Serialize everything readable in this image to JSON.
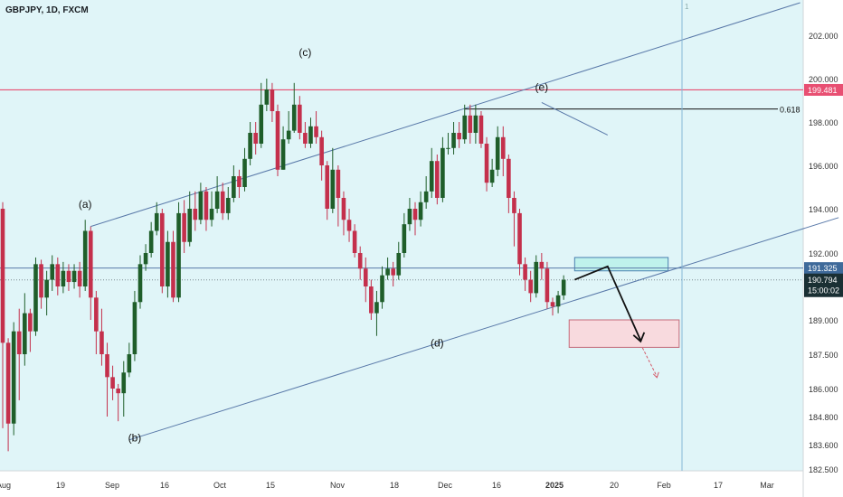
{
  "header": {
    "symbol": "GBPJPY, 1D, FXCM"
  },
  "colors": {
    "background": "#e0f5f8",
    "bull": "#1f5e2a",
    "bear": "#c4304c",
    "channel": "#5878a8",
    "resistance": "#e84f72",
    "price": "#1a2f33",
    "zone_buy": "#bff2ec",
    "zone_sell": "#f8dade"
  },
  "axes": {
    "y_ticks": [
      "202.000",
      "200.000",
      "198.000",
      "196.000",
      "194.000",
      "192.000",
      "189.000",
      "187.500",
      "186.000",
      "184.800",
      "183.600",
      "182.500"
    ],
    "x_ticks": [
      "Aug",
      "19",
      "Sep",
      "16",
      "Oct",
      "15",
      "Nov",
      "18",
      "Dec",
      "16",
      "2025",
      "20",
      "Feb",
      "17",
      "Mar"
    ]
  },
  "price_labels": {
    "resistance": "199.481",
    "current": "191.325",
    "last": "190.794",
    "countdown": "15:00:02"
  },
  "annotations": {
    "wave_a": "(a)",
    "wave_b": "(b)",
    "wave_c": "(c)",
    "wave_d": "(d)",
    "wave_e": "(e)",
    "fib": "0.618",
    "cursor_mark": "1"
  },
  "chart_data": {
    "type": "candlestick",
    "symbol": "GBPJPY",
    "timeframe": "1D",
    "ylim": [
      182.5,
      203.5
    ],
    "candles": [
      [
        194,
        188,
        194.3,
        184.3
      ],
      [
        188,
        184.5,
        188.2,
        183.3
      ],
      [
        184.5,
        188.5,
        188.9,
        184.0
      ],
      [
        188.5,
        187.5,
        189.5,
        185.5
      ],
      [
        187.5,
        189.3,
        190.2,
        187.0
      ],
      [
        189.3,
        188.5,
        189.5,
        187.6
      ],
      [
        188.5,
        191.5,
        191.8,
        188.3
      ],
      [
        191.5,
        190.0,
        191.7,
        189.5
      ],
      [
        190.0,
        190.8,
        191.2,
        189.2
      ],
      [
        190.8,
        191.5,
        191.9,
        190.3
      ],
      [
        191.5,
        190.5,
        191.8,
        190.1
      ],
      [
        190.5,
        191.2,
        191.6,
        190.2
      ],
      [
        191.2,
        190.7,
        191.5,
        190.3
      ],
      [
        190.7,
        191.2,
        191.5,
        190.4
      ],
      [
        191.2,
        190.5,
        191.6,
        190.0
      ],
      [
        190.5,
        193.0,
        193.5,
        190.3
      ],
      [
        193.0,
        190.0,
        193.2,
        189.0
      ],
      [
        190.0,
        188.5,
        190.3,
        187.5
      ],
      [
        188.5,
        187.5,
        189.5,
        187.0
      ],
      [
        187.5,
        186.5,
        188.0,
        184.8
      ],
      [
        186.5,
        186.0,
        187.0,
        185.5
      ],
      [
        186.0,
        185.8,
        186.2,
        184.6
      ],
      [
        185.8,
        186.7,
        187.2,
        184.8
      ],
      [
        186.7,
        187.5,
        188.0,
        186.5
      ],
      [
        187.5,
        189.8,
        190.3,
        187.2
      ],
      [
        189.8,
        191.5,
        191.9,
        189.5
      ],
      [
        191.5,
        192.0,
        192.4,
        191.2
      ],
      [
        192.0,
        193.0,
        193.4,
        191.8
      ],
      [
        193.0,
        193.8,
        194.3,
        192.8
      ],
      [
        193.8,
        190.5,
        194.0,
        190.2
      ],
      [
        190.5,
        192.5,
        193.0,
        190.0
      ],
      [
        192.5,
        190.0,
        193.0,
        189.8
      ],
      [
        190.0,
        193.8,
        194.3,
        189.8
      ],
      [
        193.8,
        192.5,
        194.4,
        192.0
      ],
      [
        192.5,
        194.0,
        194.8,
        192.3
      ],
      [
        194.0,
        193.5,
        194.8,
        193.0
      ],
      [
        193.5,
        194.8,
        195.2,
        193.3
      ],
      [
        194.8,
        193.5,
        195.0,
        193.0
      ],
      [
        193.5,
        194.0,
        194.8,
        193.2
      ],
      [
        194.0,
        194.8,
        195.5,
        193.8
      ],
      [
        194.8,
        193.8,
        195.2,
        193.5
      ],
      [
        193.8,
        194.5,
        195.0,
        193.5
      ],
      [
        194.5,
        195.5,
        196.0,
        194.3
      ],
      [
        195.5,
        195.0,
        195.8,
        194.5
      ],
      [
        195.0,
        196.3,
        196.8,
        194.8
      ],
      [
        196.3,
        197.5,
        198.0,
        196.0
      ],
      [
        197.5,
        197.0,
        198.0,
        196.5
      ],
      [
        197.0,
        198.8,
        199.8,
        196.8
      ],
      [
        198.8,
        199.5,
        200.0,
        198.5
      ],
      [
        199.5,
        198.5,
        199.8,
        198.0
      ],
      [
        198.5,
        195.8,
        198.8,
        195.5
      ],
      [
        195.8,
        197.2,
        197.8,
        195.8
      ],
      [
        197.2,
        197.6,
        198.5,
        197.0
      ],
      [
        197.6,
        198.8,
        199.8,
        197.5
      ],
      [
        198.8,
        197.5,
        199.2,
        197.2
      ],
      [
        197.5,
        197.0,
        198.0,
        196.8
      ],
      [
        197.0,
        197.8,
        198.2,
        196.8
      ],
      [
        197.8,
        197.3,
        198.5,
        197.0
      ],
      [
        197.3,
        196.0,
        197.6,
        195.3
      ],
      [
        196.0,
        194.0,
        196.2,
        193.5
      ],
      [
        194.0,
        195.8,
        196.8,
        193.8
      ],
      [
        195.8,
        194.5,
        196.0,
        193.2
      ],
      [
        194.5,
        193.5,
        194.8,
        192.8
      ],
      [
        193.5,
        193.0,
        194.0,
        192.5
      ],
      [
        193.0,
        192.0,
        193.3,
        191.8
      ],
      [
        192.0,
        191.3,
        192.3,
        190.8
      ],
      [
        191.3,
        190.5,
        191.8,
        189.8
      ],
      [
        190.5,
        189.3,
        190.8,
        189.0
      ],
      [
        189.3,
        189.8,
        190.3,
        188.3
      ],
      [
        189.8,
        191.0,
        191.4,
        189.5
      ],
      [
        191.0,
        191.3,
        191.8,
        190.8
      ],
      [
        191.3,
        191.0,
        191.6,
        190.5
      ],
      [
        191.0,
        192.0,
        192.5,
        190.8
      ],
      [
        192.0,
        193.3,
        193.8,
        191.8
      ],
      [
        193.3,
        194.0,
        194.5,
        193.0
      ],
      [
        194.0,
        193.5,
        194.3,
        192.8
      ],
      [
        193.5,
        194.3,
        194.8,
        193.2
      ],
      [
        194.3,
        194.8,
        195.5,
        194.0
      ],
      [
        194.8,
        196.2,
        196.8,
        194.5
      ],
      [
        196.2,
        194.5,
        196.5,
        194.2
      ],
      [
        194.5,
        196.8,
        197.3,
        194.3
      ],
      [
        196.8,
        196.8,
        197.5,
        196.5
      ],
      [
        196.8,
        197.5,
        198.0,
        196.5
      ],
      [
        197.5,
        197.2,
        198.0,
        196.8
      ],
      [
        197.2,
        198.3,
        198.8,
        197.0
      ],
      [
        198.3,
        197.5,
        198.8,
        197.0
      ],
      [
        197.5,
        198.3,
        198.8,
        197.0
      ],
      [
        198.3,
        197.0,
        198.5,
        196.8
      ],
      [
        197.0,
        195.2,
        197.3,
        194.8
      ],
      [
        195.2,
        195.8,
        196.3,
        195.0
      ],
      [
        195.8,
        197.3,
        197.8,
        195.5
      ],
      [
        197.3,
        196.3,
        197.8,
        195.5
      ],
      [
        196.3,
        194.5,
        196.5,
        193.8
      ],
      [
        194.5,
        193.8,
        194.8,
        192.3
      ],
      [
        193.8,
        191.5,
        194.0,
        191.0
      ],
      [
        191.5,
        190.8,
        191.8,
        190.3
      ],
      [
        190.8,
        190.2,
        191.2,
        189.8
      ],
      [
        190.2,
        191.6,
        191.9,
        190.0
      ],
      [
        191.6,
        191.3,
        192.0,
        190.8
      ],
      [
        191.3,
        189.8,
        191.6,
        189.5
      ],
      [
        189.8,
        189.6,
        190.0,
        189.2
      ],
      [
        189.6,
        190.1,
        190.3,
        189.3
      ],
      [
        190.1,
        190.8,
        191.0,
        189.9
      ]
    ],
    "resistance_level": 199.481,
    "current_price": 191.325,
    "last_price": 190.794,
    "fib_level": {
      "label": "0.618",
      "price": 198.6
    },
    "channel": {
      "lower_line": [
        {
          "i": 23,
          "p": 183.8
        },
        {
          "i": 152,
          "p": 193.6
        }
      ],
      "upper_line": [
        {
          "i": 16,
          "p": 193.2
        },
        {
          "i": 145,
          "p": 203.5
        }
      ]
    },
    "zones": [
      {
        "type": "demand",
        "top": 191.8,
        "bottom": 191.2,
        "from_i": 104,
        "to_i": 121
      },
      {
        "type": "target",
        "top": 189.0,
        "bottom": 187.8,
        "from_i": 103,
        "to_i": 123
      }
    ],
    "projection": [
      {
        "i": 104,
        "p": 190.8
      },
      {
        "i": 110,
        "p": 191.4
      },
      {
        "i": 116,
        "p": 188.1
      }
    ],
    "waves": [
      {
        "label": "(a)",
        "i": 15,
        "p": 194.2
      },
      {
        "label": "(b)",
        "i": 24,
        "p": 183.9
      },
      {
        "label": "(c)",
        "i": 55,
        "p": 201.2
      },
      {
        "label": "(d)",
        "i": 79,
        "p": 188.0
      },
      {
        "label": "(e)",
        "i": 98,
        "p": 199.6
      }
    ]
  }
}
